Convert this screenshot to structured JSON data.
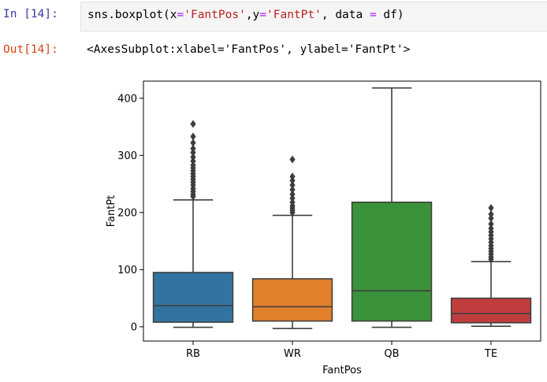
{
  "cell": {
    "in_prompt": "In [14]:",
    "out_prompt": "Out[14]:",
    "code": {
      "func": "sns.boxplot(x",
      "eq1": "=",
      "x_str": "'FantPos'",
      "mid": ",y",
      "eq2": "=",
      "y_str": "'FantPt'",
      "tail1": ", data ",
      "eq3": "=",
      "tail2": " df)"
    },
    "output_text": "<AxesSubplot:xlabel='FantPos', ylabel='FantPt'>"
  },
  "chart_data": {
    "type": "box",
    "xlabel": "FantPos",
    "ylabel": "FantPt",
    "ylim": [
      -25,
      430
    ],
    "yticks": [
      0,
      100,
      200,
      300,
      400
    ],
    "categories": [
      "RB",
      "WR",
      "QB",
      "TE"
    ],
    "colors": [
      "#3274a1",
      "#e1812c",
      "#3a923a",
      "#c03d3e"
    ],
    "boxes": [
      {
        "name": "RB",
        "whisker_low": -1,
        "q1": 8,
        "median": 37,
        "q3": 95,
        "whisker_high": 222,
        "outliers": [
          228,
          232,
          237,
          242,
          248,
          253,
          258,
          263,
          268,
          273,
          278,
          283,
          290,
          297,
          305,
          312,
          322,
          333,
          355
        ]
      },
      {
        "name": "WR",
        "whisker_low": -3,
        "q1": 10,
        "median": 35,
        "q3": 84,
        "whisker_high": 195,
        "outliers": [
          200,
          204,
          208,
          212,
          218,
          225,
          232,
          240,
          248,
          256,
          263,
          293
        ]
      },
      {
        "name": "QB",
        "whisker_low": -1,
        "q1": 10,
        "median": 63,
        "q3": 218,
        "whisker_high": 418,
        "outliers": []
      },
      {
        "name": "TE",
        "whisker_low": 1,
        "q1": 7,
        "median": 23,
        "q3": 50,
        "whisker_high": 114,
        "outliers": [
          118,
          122,
          127,
          132,
          137,
          142,
          148,
          154,
          160,
          166,
          172,
          180,
          190,
          197,
          208
        ]
      }
    ]
  }
}
